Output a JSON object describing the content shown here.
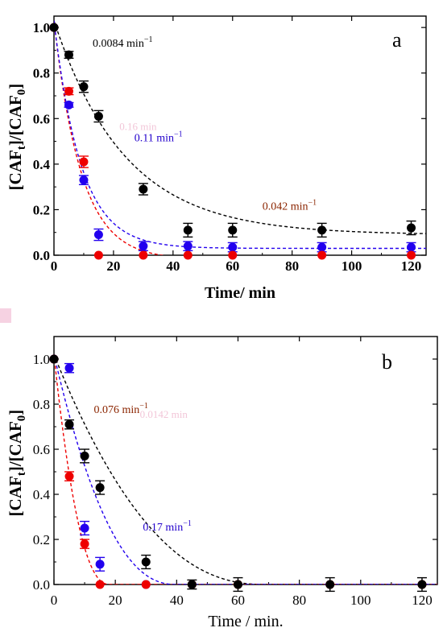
{
  "chart_data": [
    {
      "panel": "a",
      "type": "scatter",
      "xlabel": "Time/ min",
      "ylabel_main": "[CAF",
      "ylabel_sub1": "t",
      "ylabel_mid": "]/[CAF",
      "ylabel_sub2": "0",
      "ylabel_end": "]",
      "xlim": [
        0,
        125
      ],
      "ylim": [
        0,
        1.05
      ],
      "xticks": [
        "0",
        "20",
        "40",
        "60",
        "80",
        "100",
        "120"
      ],
      "yticks": [
        "0.0",
        "0.2",
        "0.4",
        "0.6",
        "0.8",
        "1.0"
      ],
      "series": [
        {
          "color": "#000000",
          "x": [
            0,
            5,
            10,
            15,
            30,
            45,
            60,
            90,
            120
          ],
          "y": [
            1.0,
            0.88,
            0.74,
            0.61,
            0.29,
            0.11,
            0.11,
            0.11,
            0.12
          ],
          "err": [
            0,
            0.015,
            0.025,
            0.025,
            0.025,
            0.03,
            0.03,
            0.03,
            0.03
          ],
          "fit": {
            "model": "exp_offset",
            "k": 0.042,
            "c": 0.09
          }
        },
        {
          "color": "#ee0000",
          "x": [
            0,
            5,
            10,
            15,
            30,
            45,
            60,
            90,
            120
          ],
          "y": [
            1.0,
            0.72,
            0.41,
            0.0,
            0.0,
            0.0,
            0.0,
            0.0,
            0.0
          ],
          "err": [
            0,
            0.015,
            0.025,
            0,
            0,
            0,
            0,
            0,
            0
          ],
          "fit": {
            "model": "exp_offset",
            "k": 0.11,
            "c": -0.02
          }
        },
        {
          "color": "#2200ee",
          "x": [
            0,
            5,
            10,
            15,
            30,
            45,
            60,
            90,
            120
          ],
          "y": [
            1.0,
            0.66,
            0.33,
            0.09,
            0.04,
            0.04,
            0.035,
            0.035,
            0.035
          ],
          "err": [
            0,
            0.01,
            0.02,
            0.025,
            0.02,
            0.02,
            0.02,
            0.02,
            0.02
          ],
          "fit": {
            "model": "exp_offset",
            "k": 0.11,
            "c": 0.03
          }
        }
      ],
      "annotations": [
        {
          "text": "0.0084 min",
          "sup": "−1",
          "color": "#000000",
          "x": 13,
          "y": 0.915
        },
        {
          "text": "0.11 min",
          "sup": "−1",
          "color": "#2200cc",
          "x": 27,
          "y": 0.5
        },
        {
          "text": "0.042 min",
          "sup": "−1",
          "color": "#8b2500",
          "x": 70,
          "y": 0.2
        }
      ],
      "ghost_text": "0.16 min",
      "panel_letter": "a"
    },
    {
      "panel": "b",
      "type": "scatter",
      "xlabel": "Time / min.",
      "ylabel_main": "[CAF",
      "ylabel_sub1": "t",
      "ylabel_mid": "]/[CAF",
      "ylabel_sub2": "0",
      "ylabel_end": "]",
      "xlim": [
        0,
        125
      ],
      "ylim": [
        0,
        1.1
      ],
      "xticks": [
        "0",
        "20",
        "40",
        "60",
        "80",
        "100",
        "120"
      ],
      "yticks": [
        "0.0",
        "0.2",
        "0.4",
        "0.6",
        "0.8",
        "1.0"
      ],
      "series": [
        {
          "color": "#000000",
          "x": [
            0,
            5,
            10,
            15,
            30,
            45,
            60,
            90,
            120
          ],
          "y": [
            1.0,
            0.71,
            0.57,
            0.43,
            0.1,
            0.0,
            0.0,
            0.0,
            0.0
          ],
          "err": [
            0,
            0.02,
            0.03,
            0.03,
            0.03,
            0.02,
            0.03,
            0.03,
            0.03
          ],
          "fit": {
            "model": "linear_zero",
            "slope": 0.0145
          }
        },
        {
          "color": "#ee0000",
          "x": [
            0,
            5,
            10,
            15,
            30,
            45,
            60,
            90,
            120
          ],
          "y": [
            1.0,
            0.48,
            0.18,
            0.0,
            0.0,
            0.0,
            0.0,
            0.0,
            0.0
          ],
          "err": [
            0,
            0.02,
            0.02,
            0,
            0,
            0,
            0,
            0,
            0
          ],
          "fit": {
            "model": "linear_zero",
            "slope": 0.055
          }
        },
        {
          "color": "#2200ee",
          "x": [
            0,
            5,
            10,
            15,
            30
          ],
          "y": [
            1.0,
            0.96,
            0.25,
            0.09,
            0.0
          ],
          "err": [
            0,
            0.02,
            0.03,
            0.03,
            0
          ],
          "fit": {
            "model": "linear_zero",
            "slope": 0.025
          }
        }
      ],
      "annotations": [
        {
          "text": "0.076 min",
          "sup": "−1",
          "color": "#8b2500",
          "x": 13,
          "y": 0.76
        },
        {
          "text": "0.17 min",
          "sup": "−1",
          "color": "#2200cc",
          "x": 29,
          "y": 0.24
        }
      ],
      "ghost_text": "0.0142 min",
      "panel_letter": "b"
    }
  ]
}
